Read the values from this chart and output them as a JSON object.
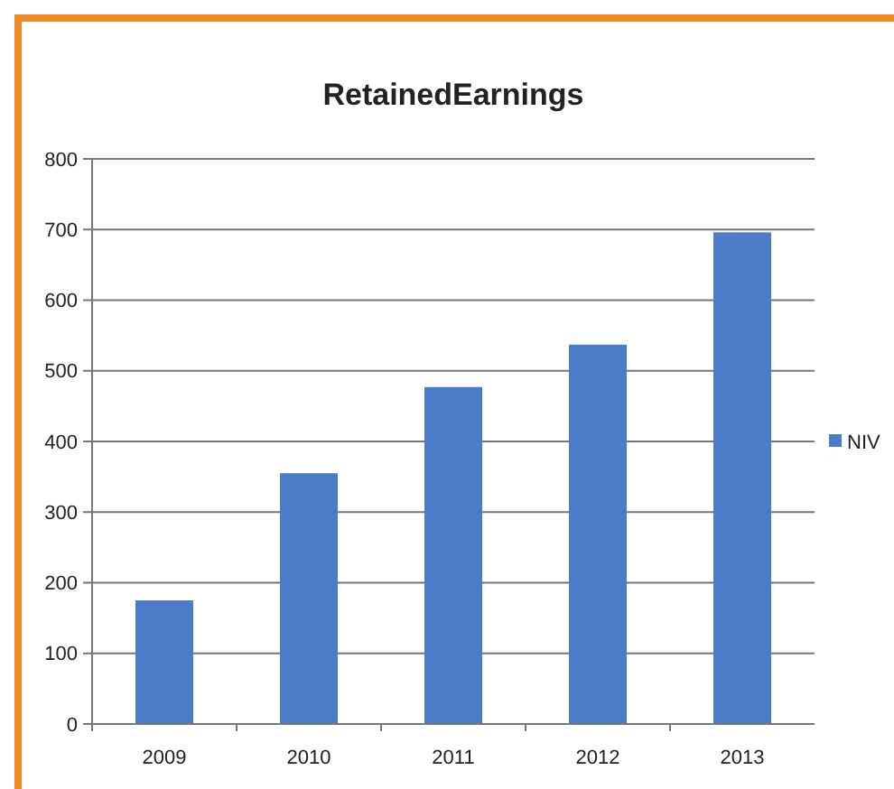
{
  "chart_data": {
    "type": "bar",
    "title": "RetainedEarnings",
    "categories": [
      "2009",
      "2010",
      "2011",
      "2012",
      "2013"
    ],
    "series": [
      {
        "name": "NIV",
        "color": "#4a7cc7",
        "values": [
          175,
          355,
          477,
          537,
          696
        ]
      }
    ],
    "ylim": [
      0,
      800
    ],
    "yticks": [
      0,
      100,
      200,
      300,
      400,
      500,
      600,
      700,
      800
    ],
    "grid": "y",
    "legend": "right"
  }
}
